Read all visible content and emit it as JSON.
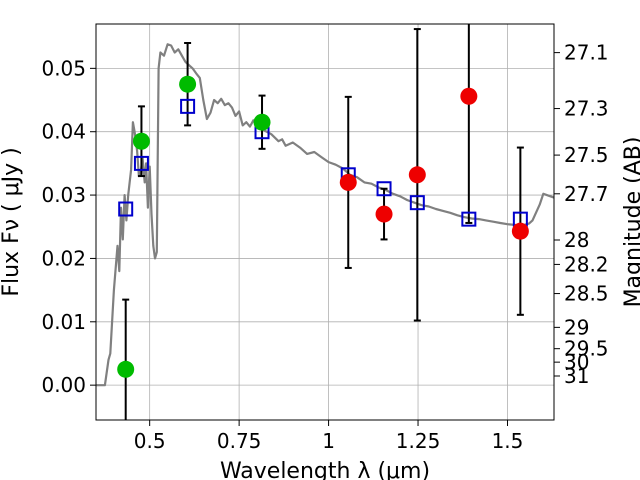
{
  "chart_data": {
    "type": "scatter",
    "xlabel": "Wavelength  λ (μm)",
    "ylabel": "Flux  Fν  ( μJy )",
    "y2label": "Magnitude (AB)",
    "xlim": [
      0.35,
      1.63
    ],
    "ylim": [
      -0.0055,
      0.057
    ],
    "grid": true,
    "x_ticks": [
      {
        "value": 0.5,
        "label": "0.5"
      },
      {
        "value": 0.75,
        "label": "0.75"
      },
      {
        "value": 1.0,
        "label": "1"
      },
      {
        "value": 1.25,
        "label": "1.25"
      },
      {
        "value": 1.5,
        "label": "1.5"
      }
    ],
    "y_ticks": [
      {
        "value": 0.0,
        "label": "0.00"
      },
      {
        "value": 0.01,
        "label": "0.01"
      },
      {
        "value": 0.02,
        "label": "0.02"
      },
      {
        "value": 0.03,
        "label": "0.03"
      },
      {
        "value": 0.04,
        "label": "0.04"
      },
      {
        "value": 0.05,
        "label": "0.05"
      }
    ],
    "y2_ticks": [
      {
        "mag": 27.1,
        "label": "27.1"
      },
      {
        "mag": 27.3,
        "label": "27.3"
      },
      {
        "mag": 27.5,
        "label": "27.5"
      },
      {
        "mag": 27.7,
        "label": "27.7"
      },
      {
        "mag": 28.0,
        "label": "28"
      },
      {
        "mag": 28.2,
        "label": "28.2"
      },
      {
        "mag": 28.5,
        "label": "28.5"
      },
      {
        "mag": 29.0,
        "label": "29"
      },
      {
        "mag": 29.5,
        "label": "29.5"
      },
      {
        "mag": 30.0,
        "label": "30"
      },
      {
        "mag": 31.0,
        "label": "31"
      }
    ],
    "series": [
      {
        "kind": "sed",
        "color": "#808080",
        "points": [
          [
            0.35,
            0.0
          ],
          [
            0.375,
            0.0
          ],
          [
            0.385,
            0.004
          ],
          [
            0.39,
            0.005
          ],
          [
            0.4,
            0.015
          ],
          [
            0.41,
            0.022
          ],
          [
            0.415,
            0.018
          ],
          [
            0.42,
            0.028
          ],
          [
            0.425,
            0.023
          ],
          [
            0.43,
            0.03
          ],
          [
            0.435,
            0.026
          ],
          [
            0.44,
            0.03
          ],
          [
            0.448,
            0.034
          ],
          [
            0.453,
            0.0415
          ],
          [
            0.458,
            0.04
          ],
          [
            0.465,
            0.037
          ],
          [
            0.47,
            0.033
          ],
          [
            0.476,
            0.034
          ],
          [
            0.48,
            0.036
          ],
          [
            0.486,
            0.032
          ],
          [
            0.49,
            0.035
          ],
          [
            0.495,
            0.028
          ],
          [
            0.5,
            0.0345
          ],
          [
            0.505,
            0.027
          ],
          [
            0.51,
            0.022
          ],
          [
            0.515,
            0.02
          ],
          [
            0.52,
            0.021
          ],
          [
            0.525,
            0.05
          ],
          [
            0.53,
            0.0525
          ],
          [
            0.54,
            0.052
          ],
          [
            0.55,
            0.0538
          ],
          [
            0.56,
            0.0536
          ],
          [
            0.57,
            0.0525
          ],
          [
            0.58,
            0.053
          ],
          [
            0.59,
            0.052
          ],
          [
            0.6,
            0.051
          ],
          [
            0.61,
            0.0505
          ],
          [
            0.62,
            0.05
          ],
          [
            0.63,
            0.0492
          ],
          [
            0.64,
            0.0485
          ],
          [
            0.65,
            0.045
          ],
          [
            0.66,
            0.042
          ],
          [
            0.67,
            0.043
          ],
          [
            0.68,
            0.045
          ],
          [
            0.69,
            0.0445
          ],
          [
            0.7,
            0.0452
          ],
          [
            0.71,
            0.0442
          ],
          [
            0.72,
            0.0445
          ],
          [
            0.73,
            0.0438
          ],
          [
            0.74,
            0.0425
          ],
          [
            0.75,
            0.0432
          ],
          [
            0.76,
            0.041
          ],
          [
            0.77,
            0.0415
          ],
          [
            0.78,
            0.0408
          ],
          [
            0.79,
            0.0418
          ],
          [
            0.8,
            0.0412
          ],
          [
            0.82,
            0.0402
          ],
          [
            0.84,
            0.0396
          ],
          [
            0.86,
            0.0385
          ],
          [
            0.87,
            0.0388
          ],
          [
            0.88,
            0.0378
          ],
          [
            0.9,
            0.0383
          ],
          [
            0.92,
            0.0375
          ],
          [
            0.94,
            0.0365
          ],
          [
            0.96,
            0.0368
          ],
          [
            0.98,
            0.036
          ],
          [
            1.0,
            0.0352
          ],
          [
            1.02,
            0.0348
          ],
          [
            1.04,
            0.0342
          ],
          [
            1.06,
            0.0332
          ],
          [
            1.08,
            0.0328
          ],
          [
            1.1,
            0.032
          ],
          [
            1.12,
            0.0318
          ],
          [
            1.14,
            0.0312
          ],
          [
            1.16,
            0.0308
          ],
          [
            1.18,
            0.0302
          ],
          [
            1.2,
            0.0298
          ],
          [
            1.22,
            0.0292
          ],
          [
            1.24,
            0.0288
          ],
          [
            1.26,
            0.0284
          ],
          [
            1.28,
            0.0282
          ],
          [
            1.3,
            0.0278
          ],
          [
            1.32,
            0.0275
          ],
          [
            1.34,
            0.0272
          ],
          [
            1.36,
            0.0268
          ],
          [
            1.38,
            0.0265
          ],
          [
            1.4,
            0.0263
          ],
          [
            1.42,
            0.0262
          ],
          [
            1.44,
            0.026
          ],
          [
            1.46,
            0.0258
          ],
          [
            1.48,
            0.0256
          ],
          [
            1.5,
            0.0254
          ],
          [
            1.52,
            0.0253
          ],
          [
            1.54,
            0.0252
          ],
          [
            1.56,
            0.0255
          ],
          [
            1.57,
            0.026
          ],
          [
            1.59,
            0.0285
          ],
          [
            1.6,
            0.0302
          ],
          [
            1.62,
            0.0298
          ],
          [
            1.63,
            0.0296
          ]
        ]
      },
      {
        "kind": "model-photometry",
        "color": "#0000cc",
        "points": [
          [
            0.433,
            0.0278
          ],
          [
            0.477,
            0.035
          ],
          [
            0.606,
            0.044
          ],
          [
            0.814,
            0.04
          ],
          [
            1.055,
            0.0332
          ],
          [
            1.155,
            0.031
          ],
          [
            1.248,
            0.0288
          ],
          [
            1.392,
            0.0262
          ],
          [
            1.536,
            0.0262
          ]
        ]
      },
      {
        "kind": "detections",
        "color": "#00bb00",
        "points": [
          {
            "x": 0.433,
            "y": 0.0025,
            "err": 0.011
          },
          {
            "x": 0.477,
            "y": 0.0385,
            "err": 0.0055
          },
          {
            "x": 0.606,
            "y": 0.0475,
            "err": 0.0065
          },
          {
            "x": 0.814,
            "y": 0.0415,
            "err": 0.0042
          }
        ]
      },
      {
        "kind": "upper-limits",
        "color": "#ee0000",
        "points": [
          {
            "x": 1.055,
            "y": 0.032,
            "err": 0.0135
          },
          {
            "x": 1.155,
            "y": 0.027,
            "err": 0.004
          },
          {
            "x": 1.248,
            "y": 0.0332,
            "err": 0.023
          },
          {
            "x": 1.392,
            "y": 0.0456,
            "err": 0.02
          },
          {
            "x": 1.536,
            "y": 0.0243,
            "err": 0.0132
          }
        ]
      }
    ]
  }
}
